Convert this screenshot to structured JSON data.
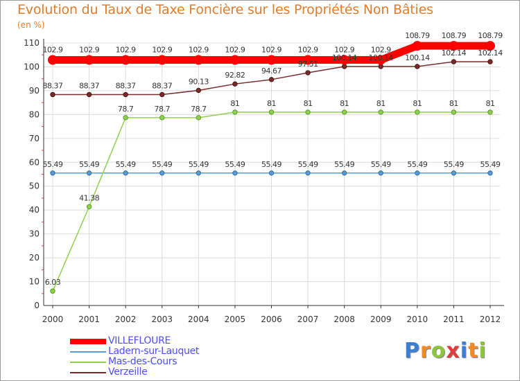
{
  "header": {
    "title": "Evolution du Taux de Taxe Foncière sur les Propriétés Non Bâties",
    "unit": "(en %)"
  },
  "chart_data": {
    "type": "line",
    "title": "Evolution du Taux de Taxe Foncière sur les Propriétés Non Bâties",
    "ylabel": "(en %)",
    "xlabel": "",
    "ylim": [
      0,
      110
    ],
    "yticks": [
      0,
      10,
      20,
      30,
      40,
      50,
      60,
      70,
      80,
      90,
      100,
      110
    ],
    "grid": true,
    "categories": [
      "2000",
      "2001",
      "2002",
      "2003",
      "2004",
      "2005",
      "2006",
      "2007",
      "2008",
      "2009",
      "2010",
      "2011",
      "2012"
    ],
    "series": [
      {
        "name": "VILLEFLOURE",
        "color": "#ff0000",
        "values": [
          102.9,
          102.9,
          102.9,
          102.9,
          102.9,
          102.9,
          102.9,
          102.9,
          102.9,
          102.9,
          108.79,
          108.79,
          108.79
        ],
        "labels": [
          "102.9",
          "102.9",
          "102.9",
          "102.9",
          "102.9",
          "102.9",
          "102.9",
          "102.9",
          "102.9",
          "102.9",
          "108.79",
          "108.79",
          "108.79"
        ]
      },
      {
        "name": "Ladern-sur-Lauquet",
        "color": "#5b9bd5",
        "values": [
          55.49,
          55.49,
          55.49,
          55.49,
          55.49,
          55.49,
          55.49,
          55.49,
          55.49,
          55.49,
          55.49,
          55.49,
          55.49
        ],
        "labels": [
          "55.49",
          "55.49",
          "55.49",
          "55.49",
          "55.49",
          "55.49",
          "55.49",
          "55.49",
          "55.49",
          "55.49",
          "55.49",
          "55.49",
          "55.49"
        ]
      },
      {
        "name": "Mas-des-Cours",
        "color": "#8fd14f",
        "values": [
          6.03,
          41.38,
          78.7,
          78.7,
          78.7,
          81,
          81,
          81,
          81,
          81,
          81,
          81,
          81
        ],
        "labels": [
          "6.03",
          "41.38",
          "78.7",
          "78.7",
          "78.7",
          "81",
          "81",
          "81",
          "81",
          "81",
          "81",
          "81",
          "81"
        ]
      },
      {
        "name": "Verzeille",
        "color": "#7a2a2a",
        "values": [
          88.37,
          88.37,
          88.37,
          88.37,
          90.13,
          92.82,
          94.67,
          97.51,
          100.14,
          100.14,
          100.14,
          102.14,
          102.14
        ],
        "labels": [
          "88.37",
          "88.37",
          "88.37",
          "88.37",
          "90.13",
          "92.82",
          "94.67",
          "97.51",
          "100.14",
          "100.14",
          "100.14",
          "102.14",
          "102.14"
        ]
      }
    ]
  },
  "legend": {
    "items": [
      {
        "label": "VILLEFLOURE",
        "color": "#ff0000"
      },
      {
        "label": "Ladern-sur-Lauquet",
        "color": "#5b9bd5"
      },
      {
        "label": "Mas-des-Cours",
        "color": "#8fd14f"
      },
      {
        "label": "Verzeille",
        "color": "#7a2a2a"
      }
    ]
  },
  "logo": {
    "letters": [
      "P",
      "r",
      "o",
      "x",
      "i",
      "t",
      "i"
    ],
    "colors": [
      "#3a7fd5",
      "#f08a24",
      "#8cc63f",
      "#e23b3b",
      "#3a7fd5",
      "#f08a24",
      "#8cc63f"
    ]
  }
}
